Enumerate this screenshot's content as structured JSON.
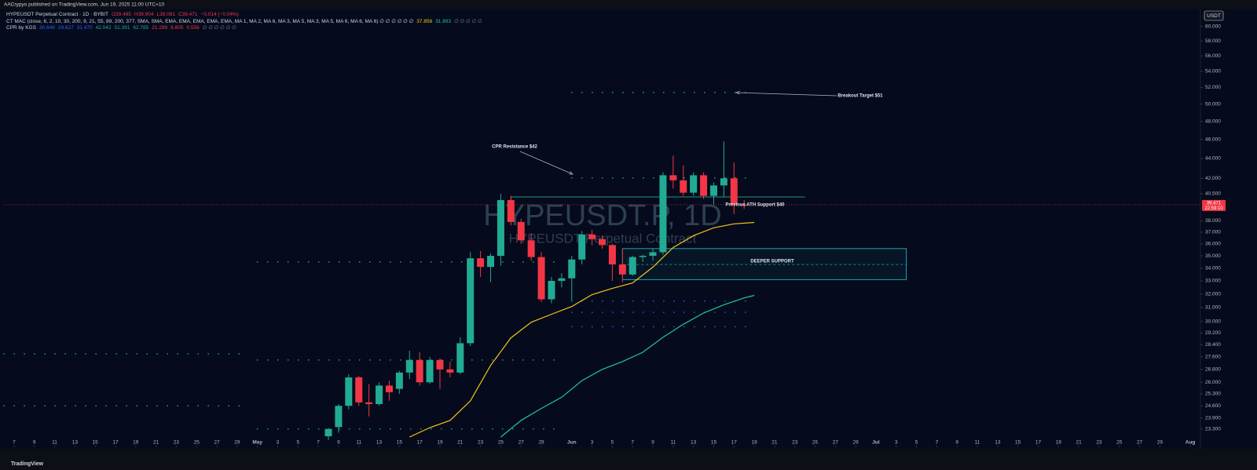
{
  "publisher": "AACrypyo published on TradingView.com, Jun 19, 2025 11:00 UTC+10",
  "footer": "TradingView",
  "currency_button": "USDT",
  "chart_data": {
    "type": "candlestick",
    "legend_rows": [
      [
        {
          "text": "HYPEUSDT Perpetual Contract · 1D · BYBIT",
          "color": "#d1d4dc"
        },
        {
          "text": "O39.485",
          "color": "#f23645"
        },
        {
          "text": "H39.904",
          "color": "#f23645"
        },
        {
          "text": "L39.081",
          "color": "#f23645"
        },
        {
          "text": "C39.471",
          "color": "#f23645"
        },
        {
          "text": "−0.014 (−0.04%)",
          "color": "#f23645"
        }
      ],
      [
        {
          "text": "CT MAC (close, 6, 2, 10, 30, 200, 9, 21, 55, 89, 200, 377, SMA, SMA, EMA, EMA, EMA, EMA, EMA, MA 1, MA 2, MA 6, MA 3, MA 5, MA 3, MA 5, MA 6, MA 6, MA 6) ∅ ∅ ∅ ∅ ∅ ∅",
          "color": "#d1d4dc"
        },
        {
          "text": "37.856",
          "color": "#f5c518"
        },
        {
          "text": "31.893",
          "color": "#22c59a"
        },
        {
          "text": "∅ ∅ ∅ ∅ ∅",
          "color": "#787b86"
        }
      ],
      [
        {
          "text": "CPR by KGS",
          "color": "#d1d4dc"
        },
        {
          "text": "30.648",
          "color": "#2962ff"
        },
        {
          "text": "29.627",
          "color": "#2962ff"
        },
        {
          "text": "31.470",
          "color": "#2962ff"
        },
        {
          "text": "42.042",
          "color": "#22ab94"
        },
        {
          "text": "51.391",
          "color": "#22ab94"
        },
        {
          "text": "62.785",
          "color": "#22ab94"
        },
        {
          "text": "21.299",
          "color": "#f23645"
        },
        {
          "text": "8.805",
          "color": "#f23645"
        },
        {
          "text": "0.556",
          "color": "#f23645"
        },
        {
          "text": "∅ ∅ ∅ ∅ ∅ ∅",
          "color": "#787b86"
        }
      ]
    ],
    "watermark": {
      "symbol": "HYPEUSDT.P, 1D",
      "description": "HYPEUSDT Perpetual Contract"
    },
    "log_scale": true,
    "xlim": [
      "2025-04-06",
      "2025-08-02"
    ],
    "ylim": [
      22.4,
      62.7
    ],
    "yticks": [
      {
        "value": 60,
        "label": "60.000"
      },
      {
        "value": 58,
        "label": "58.000"
      },
      {
        "value": 56,
        "label": "56.000"
      },
      {
        "value": 54,
        "label": "54.000"
      },
      {
        "value": 52,
        "label": "52.000"
      },
      {
        "value": 50,
        "label": "50.000"
      },
      {
        "value": 48,
        "label": "48.000"
      },
      {
        "value": 46,
        "label": "46.000"
      },
      {
        "value": 44,
        "label": "44.000"
      },
      {
        "value": 42,
        "label": "42.000"
      },
      {
        "value": 40.5,
        "label": "40.500"
      },
      {
        "value": 38,
        "label": "38.000"
      },
      {
        "value": 37,
        "label": "37.000"
      },
      {
        "value": 36,
        "label": "36.000"
      },
      {
        "value": 35,
        "label": "35.000"
      },
      {
        "value": 34,
        "label": "34.000"
      },
      {
        "value": 33,
        "label": "33.000"
      },
      {
        "value": 32,
        "label": "32.000"
      },
      {
        "value": 31,
        "label": "31.000"
      },
      {
        "value": 30,
        "label": "30.000"
      },
      {
        "value": 29.2,
        "label": "29.200"
      },
      {
        "value": 28.4,
        "label": "28.400"
      },
      {
        "value": 27.6,
        "label": "27.600"
      },
      {
        "value": 26.8,
        "label": "26.800"
      },
      {
        "value": 26,
        "label": "26.000"
      },
      {
        "value": 25.3,
        "label": "25.300"
      },
      {
        "value": 24.6,
        "label": "24.600"
      },
      {
        "value": 23.9,
        "label": "23.900"
      },
      {
        "value": 23.3,
        "label": "23.300"
      }
    ],
    "xticks": [
      {
        "value": "2025-04-07",
        "label": "7"
      },
      {
        "value": "2025-04-09",
        "label": "9"
      },
      {
        "value": "2025-04-11",
        "label": "11"
      },
      {
        "value": "2025-04-13",
        "label": "13"
      },
      {
        "value": "2025-04-15",
        "label": "15"
      },
      {
        "value": "2025-04-17",
        "label": "17"
      },
      {
        "value": "2025-04-19",
        "label": "19"
      },
      {
        "value": "2025-04-21",
        "label": "21"
      },
      {
        "value": "2025-04-23",
        "label": "23"
      },
      {
        "value": "2025-04-25",
        "label": "25"
      },
      {
        "value": "2025-04-27",
        "label": "27"
      },
      {
        "value": "2025-04-29",
        "label": "29"
      },
      {
        "value": "2025-05-01",
        "label": "May"
      },
      {
        "value": "2025-05-03",
        "label": "3"
      },
      {
        "value": "2025-05-05",
        "label": "5"
      },
      {
        "value": "2025-05-07",
        "label": "7"
      },
      {
        "value": "2025-05-09",
        "label": "9"
      },
      {
        "value": "2025-05-11",
        "label": "11"
      },
      {
        "value": "2025-05-13",
        "label": "13"
      },
      {
        "value": "2025-05-15",
        "label": "15"
      },
      {
        "value": "2025-05-17",
        "label": "17"
      },
      {
        "value": "2025-05-19",
        "label": "19"
      },
      {
        "value": "2025-05-21",
        "label": "21"
      },
      {
        "value": "2025-05-23",
        "label": "23"
      },
      {
        "value": "2025-05-25",
        "label": "25"
      },
      {
        "value": "2025-05-27",
        "label": "27"
      },
      {
        "value": "2025-05-29",
        "label": "29"
      },
      {
        "value": "2025-06-01",
        "label": "Jun"
      },
      {
        "value": "2025-06-03",
        "label": "3"
      },
      {
        "value": "2025-06-05",
        "label": "5"
      },
      {
        "value": "2025-06-07",
        "label": "7"
      },
      {
        "value": "2025-06-09",
        "label": "9"
      },
      {
        "value": "2025-06-11",
        "label": "11"
      },
      {
        "value": "2025-06-13",
        "label": "13"
      },
      {
        "value": "2025-06-15",
        "label": "15"
      },
      {
        "value": "2025-06-17",
        "label": "17"
      },
      {
        "value": "2025-06-19",
        "label": "19"
      },
      {
        "value": "2025-06-21",
        "label": "21"
      },
      {
        "value": "2025-06-23",
        "label": "23"
      },
      {
        "value": "2025-06-25",
        "label": "25"
      },
      {
        "value": "2025-06-27",
        "label": "27"
      },
      {
        "value": "2025-06-29",
        "label": "29"
      },
      {
        "value": "2025-07-01",
        "label": "Jul"
      },
      {
        "value": "2025-07-03",
        "label": "3"
      },
      {
        "value": "2025-07-05",
        "label": "5"
      },
      {
        "value": "2025-07-07",
        "label": "7"
      },
      {
        "value": "2025-07-09",
        "label": "9"
      },
      {
        "value": "2025-07-11",
        "label": "11"
      },
      {
        "value": "2025-07-13",
        "label": "13"
      },
      {
        "value": "2025-07-15",
        "label": "15"
      },
      {
        "value": "2025-07-17",
        "label": "17"
      },
      {
        "value": "2025-07-19",
        "label": "19"
      },
      {
        "value": "2025-07-21",
        "label": "21"
      },
      {
        "value": "2025-07-23",
        "label": "23"
      },
      {
        "value": "2025-07-25",
        "label": "25"
      },
      {
        "value": "2025-07-27",
        "label": "27"
      },
      {
        "value": "2025-07-29",
        "label": "29"
      },
      {
        "value": "2025-08-01",
        "label": "Aug"
      }
    ],
    "candles": {
      "up_color": "#22ab94",
      "down_color": "#f23645",
      "x": [
        "2025-05-08",
        "2025-05-09",
        "2025-05-10",
        "2025-05-11",
        "2025-05-12",
        "2025-05-13",
        "2025-05-14",
        "2025-05-15",
        "2025-05-16",
        "2025-05-17",
        "2025-05-18",
        "2025-05-19",
        "2025-05-20",
        "2025-05-21",
        "2025-05-22",
        "2025-05-23",
        "2025-05-24",
        "2025-05-25",
        "2025-05-26",
        "2025-05-27",
        "2025-05-28",
        "2025-05-29",
        "2025-05-30",
        "2025-05-31",
        "2025-06-01",
        "2025-06-02",
        "2025-06-03",
        "2025-06-04",
        "2025-06-05",
        "2025-06-06",
        "2025-06-07",
        "2025-06-08",
        "2025-06-09",
        "2025-06-10",
        "2025-06-11",
        "2025-06-12",
        "2025-06-13",
        "2025-06-14",
        "2025-06-15",
        "2025-06-16",
        "2025-06-17",
        "2025-06-18"
      ],
      "open": [
        22.9,
        23.4,
        24.6,
        26.3,
        24.8,
        24.7,
        25.8,
        25.6,
        26.6,
        27.4,
        26.0,
        27.4,
        26.8,
        26.6,
        28.5,
        34.8,
        34.1,
        35.0,
        39.9,
        37.9,
        36.3,
        34.9,
        31.6,
        33.0,
        33.2,
        34.7,
        36.8,
        36.4,
        35.9,
        34.3,
        33.5,
        34.9,
        35.0,
        35.3,
        42.3,
        41.8,
        40.6,
        42.3,
        40.3,
        41.3,
        42.0,
        39.485
      ],
      "high": [
        23.3,
        24.7,
        26.5,
        26.4,
        25.9,
        26.0,
        26.1,
        26.7,
        28.0,
        27.9,
        27.6,
        27.5,
        27.3,
        28.9,
        35.3,
        35.4,
        35.2,
        40.5,
        40.3,
        38.2,
        36.9,
        35.3,
        33.3,
        33.6,
        35.0,
        37.1,
        37.2,
        36.7,
        36.0,
        35.6,
        35.0,
        35.1,
        35.6,
        42.6,
        44.3,
        43.3,
        42.6,
        42.6,
        41.6,
        45.8,
        43.6,
        39.904
      ],
      "low": [
        22.7,
        23.1,
        24.4,
        24.6,
        24.0,
        24.6,
        24.9,
        25.3,
        26.2,
        25.8,
        25.9,
        25.6,
        26.3,
        26.5,
        28.3,
        33.3,
        32.9,
        34.2,
        37.6,
        36.0,
        34.6,
        31.4,
        31.3,
        32.5,
        31.5,
        34.3,
        35.9,
        35.6,
        33.0,
        32.9,
        33.4,
        34.5,
        34.6,
        35.1,
        41.0,
        40.3,
        40.3,
        40.0,
        39.5,
        40.2,
        38.6,
        39.081
      ],
      "close": [
        23.3,
        24.6,
        26.3,
        24.8,
        24.7,
        25.8,
        25.4,
        26.6,
        27.4,
        26.0,
        27.4,
        26.8,
        26.6,
        28.5,
        34.8,
        34.1,
        35.0,
        39.9,
        37.9,
        36.3,
        34.9,
        31.6,
        33.0,
        33.2,
        34.7,
        36.8,
        36.4,
        35.9,
        34.3,
        33.5,
        34.9,
        35.0,
        35.3,
        42.3,
        41.8,
        40.6,
        42.3,
        40.3,
        41.3,
        42.0,
        39.5,
        39.471
      ]
    },
    "lines": [
      {
        "color": "#f5c518",
        "x": [
          "2025-05-16",
          "2025-05-18",
          "2025-05-20",
          "2025-05-22",
          "2025-05-24",
          "2025-05-26",
          "2025-05-28",
          "2025-05-30",
          "2025-06-01",
          "2025-06-03",
          "2025-06-05",
          "2025-06-07",
          "2025-06-09",
          "2025-06-11",
          "2025-06-13",
          "2025-06-15",
          "2025-06-17",
          "2025-06-19"
        ],
        "values": [
          22.86,
          23.37,
          23.77,
          24.89,
          27.05,
          28.86,
          29.94,
          30.51,
          31.07,
          31.95,
          32.42,
          32.84,
          34.08,
          35.69,
          36.7,
          37.39,
          37.73,
          37.856
        ]
      },
      {
        "color": "#22c59a",
        "x": [
          "2025-05-25",
          "2025-05-27",
          "2025-05-29",
          "2025-05-31",
          "2025-06-02",
          "2025-06-04",
          "2025-06-06",
          "2025-06-08",
          "2025-06-10",
          "2025-06-12",
          "2025-06-14",
          "2025-06-16",
          "2025-06-18",
          "2025-06-19"
        ],
        "values": [
          22.86,
          23.77,
          24.45,
          25.1,
          26.1,
          26.8,
          27.3,
          27.9,
          28.9,
          29.8,
          30.6,
          31.2,
          31.7,
          31.893
        ]
      }
    ],
    "levels": [
      {
        "value": 51.391,
        "from": "2025-06-01",
        "to": "2025-06-19",
        "color": "#22ab94"
      },
      {
        "value": 42.042,
        "from": "2025-06-01",
        "to": "2025-06-19",
        "color": "#22ab94"
      },
      {
        "value": 31.47,
        "from": "2025-06-01",
        "to": "2025-06-19",
        "color": "#2962ff"
      },
      {
        "value": 30.648,
        "from": "2025-06-01",
        "to": "2025-06-19",
        "color": "#2962ff"
      },
      {
        "value": 29.627,
        "from": "2025-06-01",
        "to": "2025-06-19",
        "color": "#2962ff"
      },
      {
        "value": 34.5,
        "from": "2025-05-01",
        "to": "2025-05-31",
        "color": "#22ab94"
      },
      {
        "value": 27.4,
        "from": "2025-05-01",
        "to": "2025-05-31",
        "color": "#22ab94"
      },
      {
        "value": 23.3,
        "from": "2025-05-01",
        "to": "2025-05-31",
        "color": "#22ab94"
      },
      {
        "value": 27.8,
        "from": "2025-04-06",
        "to": "2025-04-30",
        "color": "#22ab94"
      },
      {
        "value": 24.6,
        "from": "2025-04-06",
        "to": "2025-04-30",
        "color": "#22ab94"
      }
    ],
    "zone": {
      "label": "DEEPER SUPPORT",
      "low": 33.1,
      "high": 35.6,
      "mid": 34.3,
      "from": "2025-06-06",
      "to": "2025-07-04",
      "color": "#26c6da"
    },
    "ath_line": {
      "value": 40.2,
      "from": "2025-05-26",
      "to": "2025-06-24",
      "color": "#2a8c8c"
    },
    "annotations": [
      {
        "text": "CPR Resistance $42"
      },
      {
        "text": "Breakout Target $51"
      },
      {
        "text": "Previous ATH Support $40"
      }
    ],
    "price": 39.471,
    "countdown": "22:59:10"
  }
}
